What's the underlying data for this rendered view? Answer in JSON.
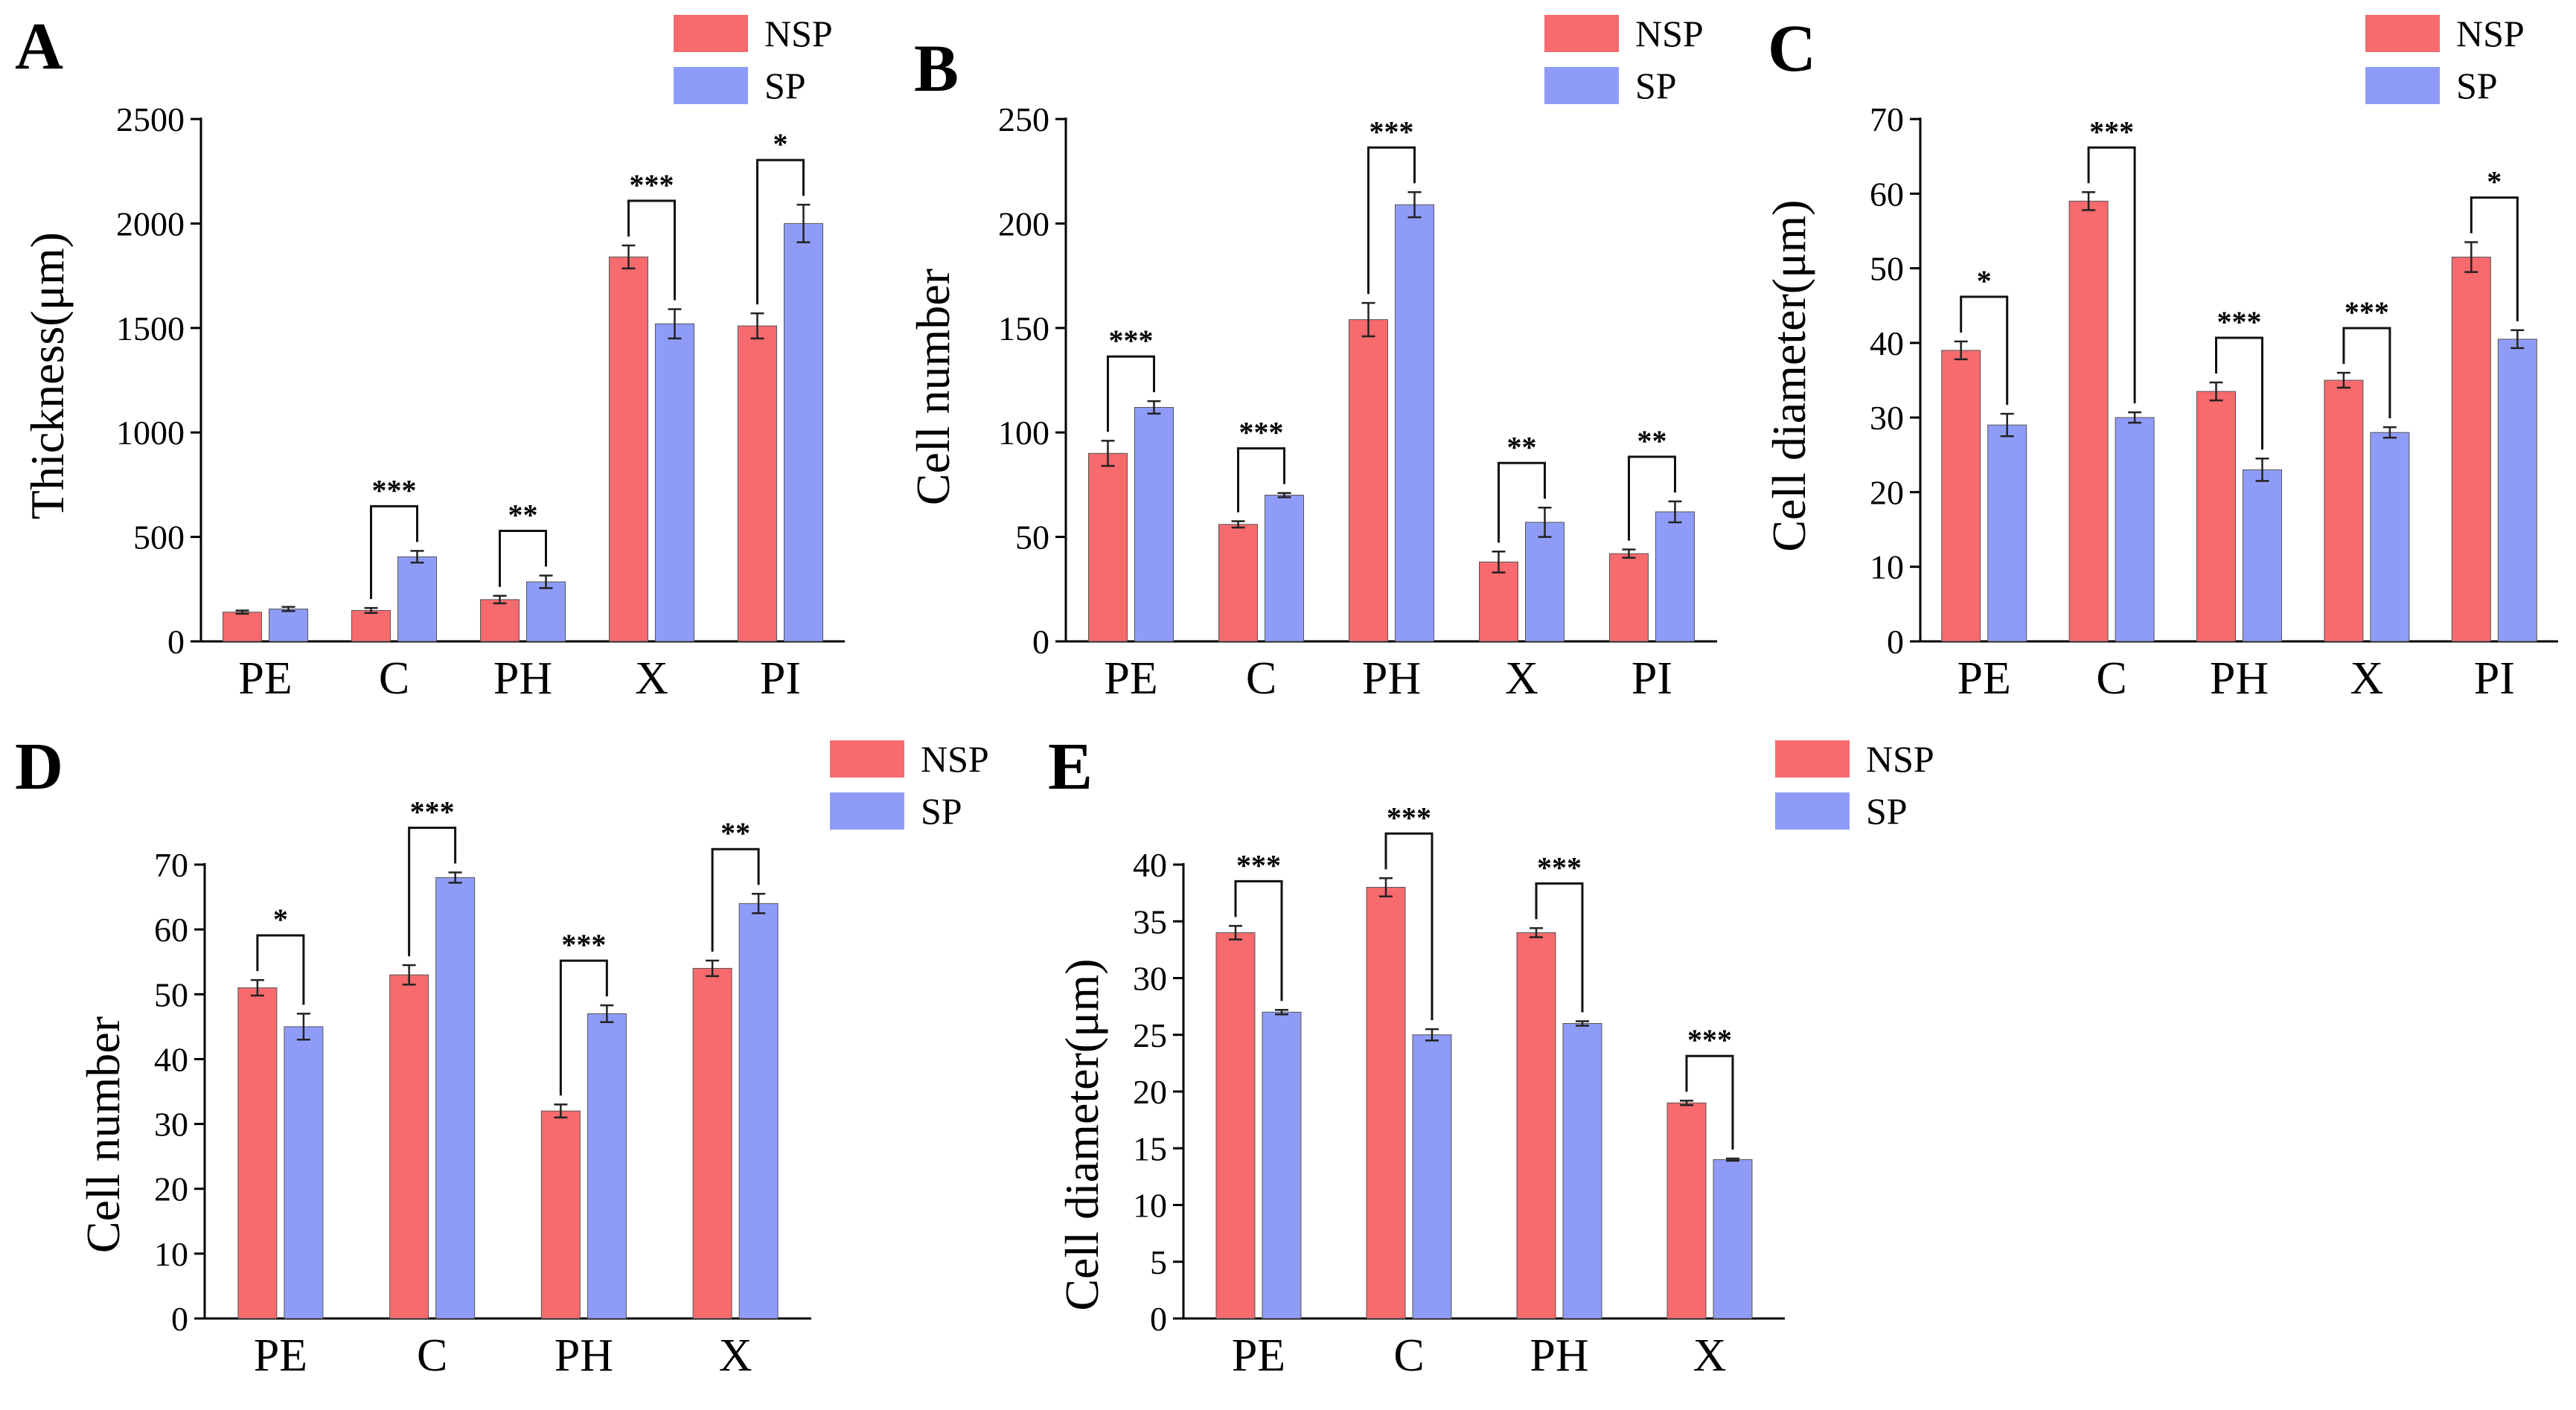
{
  "colors": {
    "nsp": "#f76a6d",
    "sp": "#8f9cf7",
    "axis": "#000000"
  },
  "legend": {
    "nsp_label": "NSP",
    "sp_label": "SP"
  },
  "chart_data": [
    {
      "id": "A",
      "letter": "A",
      "type": "bar",
      "ylabel": "Thickness(μm)",
      "ylim": [
        0,
        2500
      ],
      "yticks": [
        0,
        500,
        1000,
        1500,
        2000,
        2500
      ],
      "categories": [
        "PE",
        "C",
        "PH",
        "X",
        "PI"
      ],
      "series": [
        {
          "name": "NSP",
          "values": [
            140,
            148,
            200,
            1840,
            1510
          ],
          "errors": [
            8,
            12,
            18,
            55,
            60
          ]
        },
        {
          "name": "SP",
          "values": [
            155,
            405,
            285,
            1520,
            2000
          ],
          "errors": [
            10,
            28,
            30,
            70,
            90
          ]
        }
      ],
      "significance": [
        null,
        "***",
        "**",
        "***",
        "*"
      ]
    },
    {
      "id": "B",
      "letter": "B",
      "type": "bar",
      "ylabel": "Cell number",
      "ylim": [
        0,
        250
      ],
      "yticks": [
        0,
        50,
        100,
        150,
        200,
        250
      ],
      "categories": [
        "PE",
        "C",
        "PH",
        "X",
        "PI"
      ],
      "series": [
        {
          "name": "NSP",
          "values": [
            90,
            56,
            154,
            38,
            42
          ],
          "errors": [
            6,
            1.5,
            8,
            5,
            2
          ]
        },
        {
          "name": "SP",
          "values": [
            112,
            70,
            209,
            57,
            62
          ],
          "errors": [
            3,
            1,
            6,
            7,
            5
          ]
        }
      ],
      "significance": [
        "***",
        "***",
        "***",
        "**",
        "**"
      ]
    },
    {
      "id": "C",
      "letter": "C",
      "type": "bar",
      "ylabel": "Cell diameter(μm)",
      "ylim": [
        0,
        70
      ],
      "yticks": [
        0,
        10,
        20,
        30,
        40,
        50,
        60,
        70
      ],
      "categories": [
        "PE",
        "C",
        "PH",
        "X",
        "PI"
      ],
      "series": [
        {
          "name": "NSP",
          "values": [
            39,
            59,
            33.5,
            35,
            51.5
          ],
          "errors": [
            1.2,
            1.2,
            1.2,
            1,
            2
          ]
        },
        {
          "name": "SP",
          "values": [
            29,
            30,
            23,
            28,
            40.5
          ],
          "errors": [
            1.5,
            0.7,
            1.5,
            0.7,
            1.2
          ]
        }
      ],
      "significance": [
        "*",
        "***",
        "***",
        "***",
        "*"
      ]
    },
    {
      "id": "D",
      "letter": "D",
      "type": "bar",
      "ylabel": "Cell number",
      "ylim": [
        0,
        70
      ],
      "yticks": [
        0,
        10,
        20,
        30,
        40,
        50,
        60,
        70
      ],
      "categories": [
        "PE",
        "C",
        "PH",
        "X"
      ],
      "series": [
        {
          "name": "NSP",
          "values": [
            51,
            53,
            32,
            54
          ],
          "errors": [
            1.2,
            1.5,
            1,
            1.2
          ]
        },
        {
          "name": "SP",
          "values": [
            45,
            68,
            47,
            64
          ],
          "errors": [
            2,
            0.8,
            1.3,
            1.5
          ]
        }
      ],
      "significance": [
        "*",
        "***",
        "***",
        "**"
      ]
    },
    {
      "id": "E",
      "letter": "E",
      "type": "bar",
      "ylabel": "Cell diameter(μm)",
      "ylim": [
        0,
        40
      ],
      "yticks": [
        0,
        5,
        10,
        15,
        20,
        25,
        30,
        35,
        40
      ],
      "categories": [
        "PE",
        "C",
        "PH",
        "X"
      ],
      "series": [
        {
          "name": "NSP",
          "values": [
            34,
            38,
            34,
            19
          ],
          "errors": [
            0.6,
            0.8,
            0.4,
            0.2
          ]
        },
        {
          "name": "SP",
          "values": [
            27,
            25,
            26,
            14
          ],
          "errors": [
            0.2,
            0.5,
            0.2,
            0.1
          ]
        }
      ],
      "significance": [
        "***",
        "***",
        "***",
        "***"
      ]
    }
  ]
}
